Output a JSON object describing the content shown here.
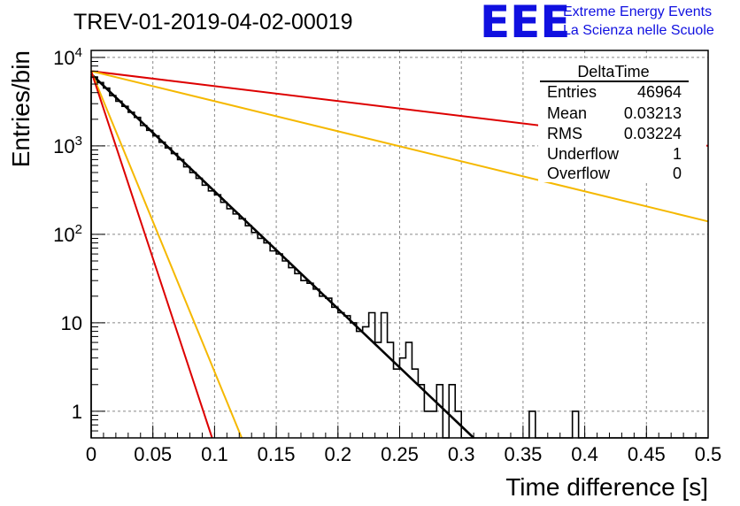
{
  "title": "TREV-01-2019-04-02-00019",
  "logo": {
    "mark": "EEE",
    "line1": "Extreme Energy Events",
    "line2": "La Scienza nelle Scuole",
    "color": "#1010e0"
  },
  "stats_box": {
    "title": "DeltaTime",
    "rows": [
      {
        "label": "Entries",
        "value": "46964"
      },
      {
        "label": "Mean",
        "value": "0.03213"
      },
      {
        "label": "RMS",
        "value": "0.03224"
      },
      {
        "label": "Underflow",
        "value": "1"
      },
      {
        "label": "Overflow",
        "value": "0"
      }
    ]
  },
  "chart_data": {
    "type": "line",
    "xlabel": "Time difference [s]",
    "ylabel": "Entries/bin",
    "xlim": [
      0,
      0.5
    ],
    "ylim": [
      0.5,
      12000
    ],
    "y_scale": "log",
    "grid": true,
    "x_ticks": [
      "0",
      "0.05",
      "0.1",
      "0.15",
      "0.2",
      "0.25",
      "0.3",
      "0.35",
      "0.4",
      "0.45",
      "0.5"
    ],
    "x_tick_values": [
      0,
      0.05,
      0.1,
      0.15,
      0.2,
      0.25,
      0.3,
      0.35,
      0.4,
      0.45,
      0.5
    ],
    "y_ticks": [
      {
        "value": 1,
        "label": "1",
        "exp": ""
      },
      {
        "value": 10,
        "label": "10",
        "exp": ""
      },
      {
        "value": 100,
        "label": "10",
        "exp": "2"
      },
      {
        "value": 1000,
        "label": "10",
        "exp": "3"
      },
      {
        "value": 10000,
        "label": "10",
        "exp": "4"
      }
    ],
    "histogram": {
      "bin_width": 0.005,
      "color": "#000000",
      "counts": [
        6000,
        5200,
        4500,
        3700,
        3200,
        2800,
        2400,
        2100,
        1700,
        1500,
        1300,
        1100,
        950,
        820,
        700,
        580,
        500,
        430,
        360,
        310,
        280,
        230,
        195,
        170,
        150,
        125,
        105,
        90,
        80,
        65,
        60,
        50,
        42,
        36,
        30,
        28,
        24,
        20,
        19,
        15,
        13,
        12,
        10,
        8,
        9,
        13,
        6,
        13,
        6,
        3,
        4,
        6,
        3,
        2,
        1,
        1,
        2,
        0,
        2,
        1,
        0,
        0,
        0,
        0,
        0,
        0,
        0,
        0,
        0,
        0,
        0,
        1,
        0,
        0,
        0,
        0,
        0,
        0,
        1,
        0,
        0,
        0,
        0,
        0,
        0,
        0,
        0,
        0,
        0,
        0,
        0,
        0,
        0,
        0,
        0,
        0,
        0,
        0,
        0,
        0
      ]
    },
    "series": [
      {
        "color": "#000000",
        "x": [
          0,
          0.31
        ],
        "y": [
          6500,
          0.5
        ]
      },
      {
        "color": "#dd0000",
        "x": [
          0,
          0.5
        ],
        "y": [
          7000,
          1000
        ]
      },
      {
        "color": "#f5b800",
        "x": [
          0,
          0.5
        ],
        "y": [
          7000,
          140
        ]
      },
      {
        "color": "#f5b800",
        "x": [
          0,
          0.122
        ],
        "y": [
          7000,
          0.5
        ]
      },
      {
        "color": "#dd0000",
        "x": [
          0,
          0.098
        ],
        "y": [
          7000,
          0.5
        ]
      }
    ]
  }
}
